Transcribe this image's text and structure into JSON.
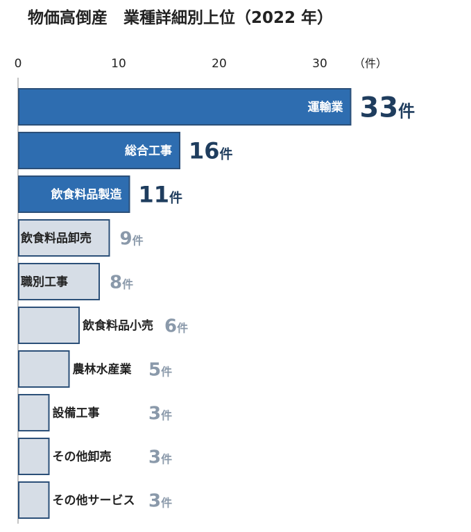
{
  "chart_data": {
    "type": "bar",
    "orientation": "horizontal",
    "title": "物価高倒産　業種詳細別上位（2022 年）",
    "axis_unit": "（件）",
    "xlim": [
      0,
      33
    ],
    "ticks": [
      0,
      10,
      20,
      30
    ],
    "categories": [
      "運輸業",
      "総合工事",
      "飲食料品製造",
      "飲食料品卸売",
      "職別工事",
      "飲食料品小売",
      "農林水産業",
      "設備工事",
      "その他卸売",
      "その他サービス"
    ],
    "values": [
      33,
      16,
      11,
      9,
      8,
      6,
      5,
      3,
      3,
      3
    ],
    "value_suffix": "件",
    "colors": {
      "top_bar": "#2e6db0",
      "other_bar": "#d6dde6",
      "bar_edge": "#2b4f78",
      "top_value_text": "#1f3d5e",
      "other_value_text": "#8a99aa"
    }
  }
}
